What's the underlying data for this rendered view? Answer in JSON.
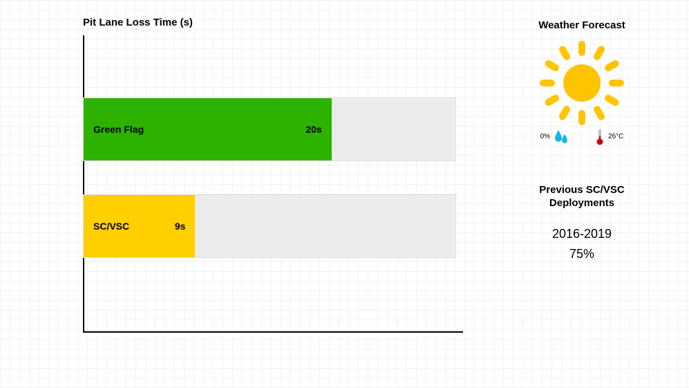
{
  "chart": {
    "title": "Pit Lane Loss Time (s)",
    "type": "bar",
    "max_value": 30,
    "bars": [
      {
        "label": "Green Flag",
        "value_label": "20s",
        "value": 20,
        "color": "#2db200"
      },
      {
        "label": "SC/VSC",
        "value_label": "9s",
        "value": 9,
        "color": "#ffcf00"
      }
    ],
    "track_bg": "#ececec",
    "track_border": "#e0e0e0",
    "axis_color": "#000000",
    "text_color": "#000000",
    "label_fontsize": 14
  },
  "weather": {
    "title": "Weather Forecast",
    "sun_color": "#ffc400",
    "rain_pct_label": "0%",
    "rain_icon_color": "#19b5e6",
    "temp_label": "26°C",
    "therm_bulb_color": "#d00000",
    "therm_body_color": "#bfbfbf"
  },
  "deployments": {
    "title_line1": "Previous SC/VSC",
    "title_line2": "Deployments",
    "range": "2016-2019",
    "pct": "75%"
  },
  "page": {
    "background": "#ffffff",
    "grid_color": "#f2f2f2"
  }
}
